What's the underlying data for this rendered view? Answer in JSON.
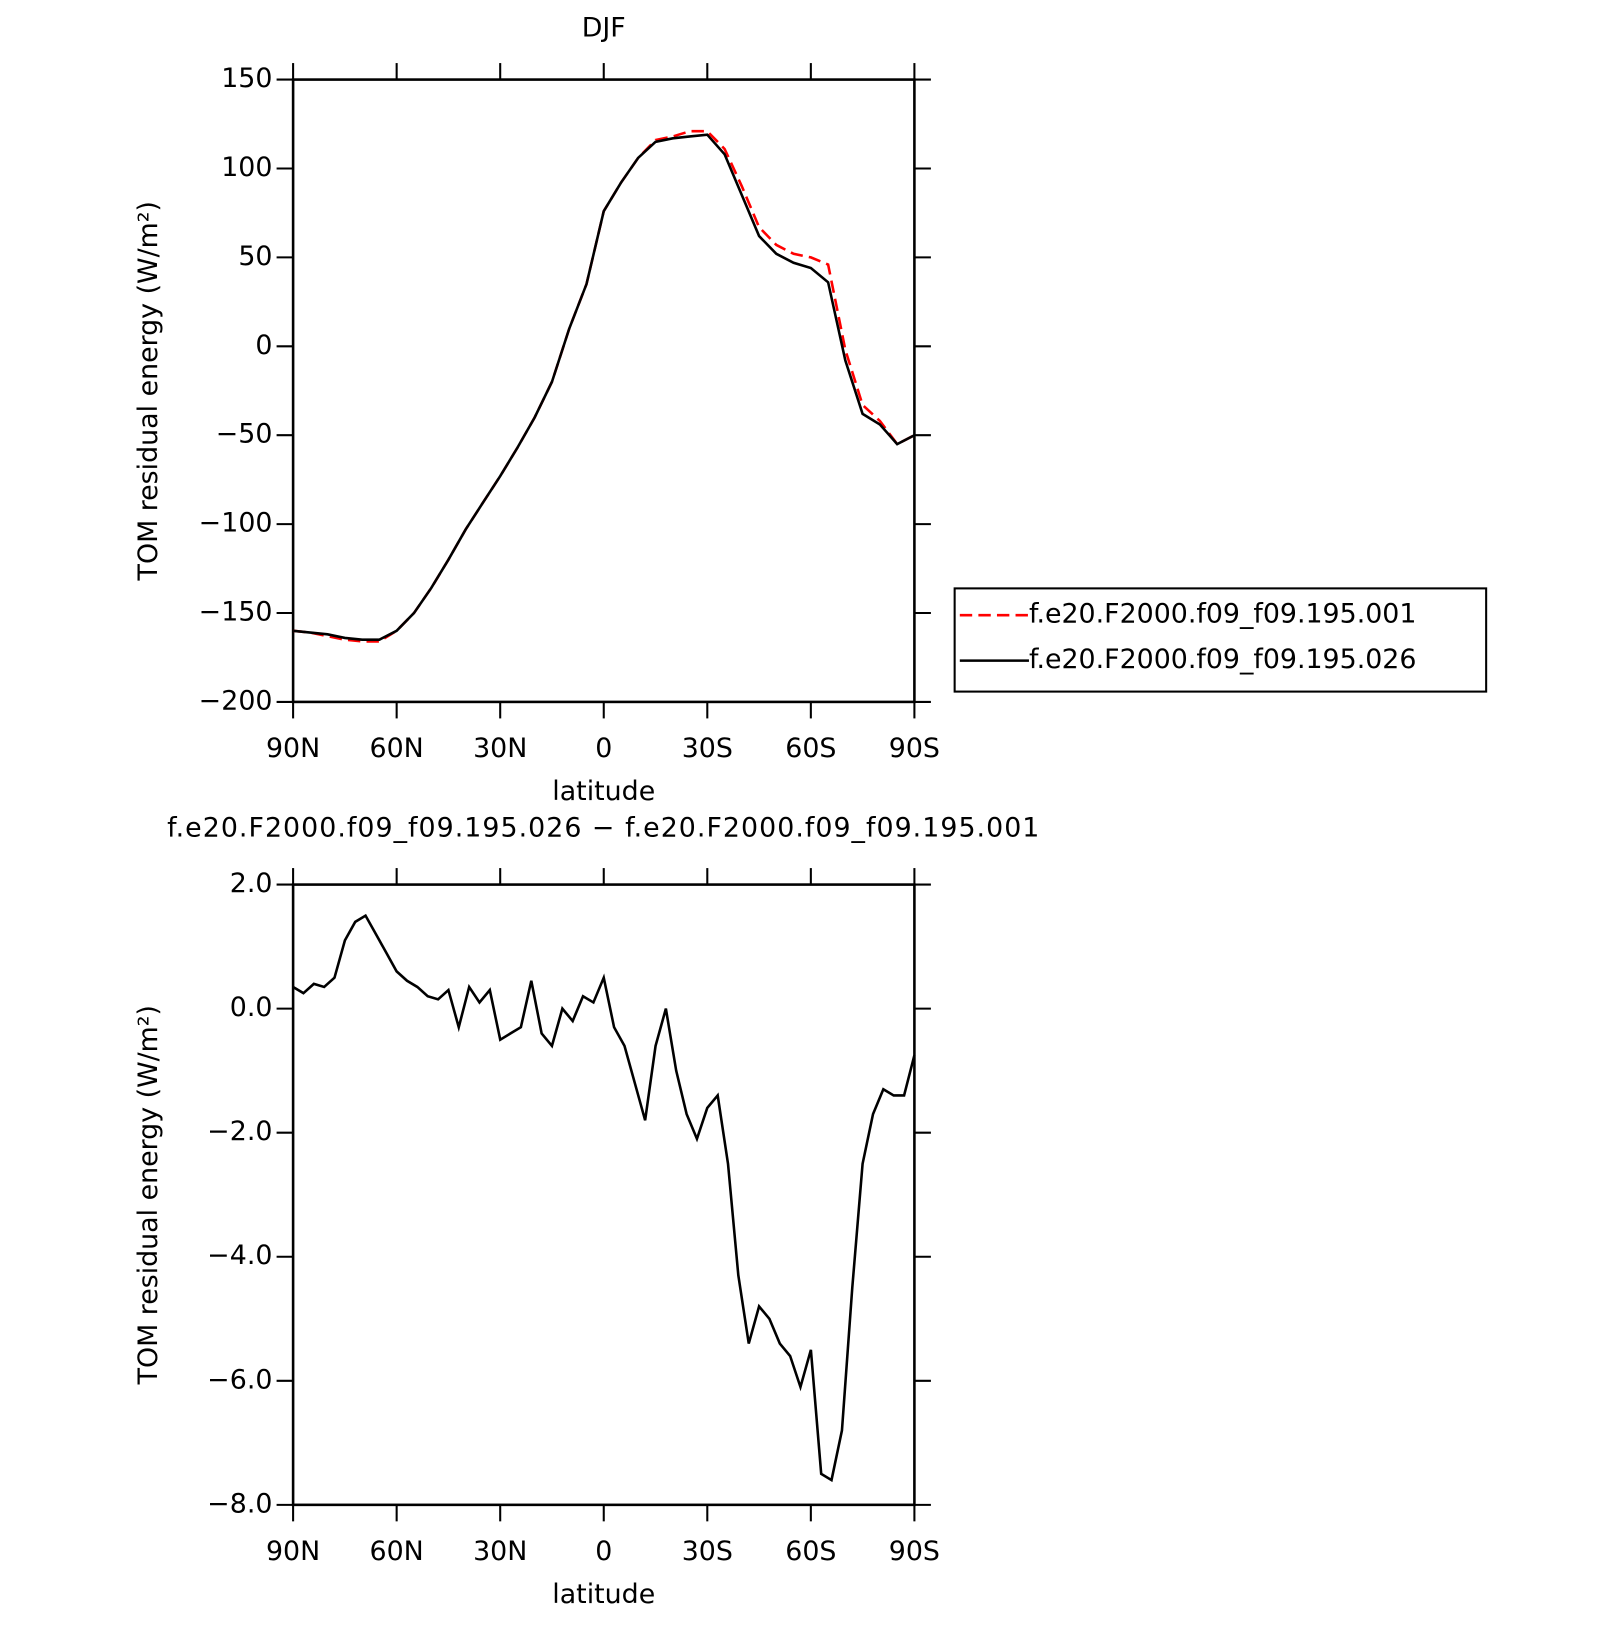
{
  "chart_data": [
    {
      "type": "line",
      "title": "DJF",
      "xlabel": "latitude",
      "ylabel": "TOM residual energy (W/m²)",
      "x": [
        90,
        85,
        80,
        75,
        70,
        65,
        60,
        55,
        50,
        45,
        40,
        35,
        30,
        25,
        20,
        15,
        10,
        5,
        0,
        -5,
        -10,
        -15,
        -20,
        -25,
        -30,
        -35,
        -40,
        -45,
        -50,
        -55,
        -60,
        -65,
        -70,
        -75,
        -80,
        -85,
        -90
      ],
      "series": [
        {
          "name": "f.e20.F2000.f09_f09.195.001",
          "color": "#ff0000",
          "linestyle": "dashed",
          "values": [
            -160,
            -161,
            -163,
            -165,
            -166,
            -166,
            -160,
            -150,
            -136,
            -120,
            -103,
            -88,
            -73,
            -57,
            -40,
            -20,
            10,
            35,
            76,
            92,
            106,
            116,
            118,
            121,
            121,
            111,
            90,
            67,
            57,
            52,
            50,
            46,
            -2,
            -33,
            -42,
            -55,
            -50
          ]
        },
        {
          "name": "f.e20.F2000.f09_f09.195.026",
          "color": "#000000",
          "linestyle": "solid",
          "values": [
            -160,
            -161,
            -162,
            -164,
            -165,
            -165,
            -160,
            -150,
            -136,
            -120,
            -103,
            -88,
            -73,
            -57,
            -40,
            -20,
            10,
            35,
            76,
            92,
            106,
            115,
            117,
            118,
            119,
            108,
            85,
            62,
            52,
            47,
            44,
            36,
            -8,
            -38,
            -44,
            -55,
            -50
          ]
        }
      ],
      "xlim": [
        90,
        -90
      ],
      "xticks": [
        {
          "value": 90,
          "label": "90N"
        },
        {
          "value": 60,
          "label": "60N"
        },
        {
          "value": 30,
          "label": "30N"
        },
        0,
        {
          "value": -30,
          "label": "30S"
        },
        {
          "value": -60,
          "label": "60S"
        },
        {
          "value": -90,
          "label": "90S"
        }
      ],
      "ylim": [
        -200,
        150
      ],
      "yticks": [
        {
          "value": -200,
          "label": "−200"
        },
        {
          "value": -150,
          "label": "−150"
        },
        {
          "value": -100,
          "label": "−100"
        },
        {
          "value": -50,
          "label": "−50"
        },
        0,
        50,
        100,
        150
      ],
      "legend": "right"
    },
    {
      "type": "line",
      "title": "f.e20.F2000.f09_f09.195.026 − f.e20.F2000.f09_f09.195.001",
      "xlabel": "latitude",
      "ylabel": "TOM residual energy (W/m²)",
      "x": [
        90,
        87,
        84,
        81,
        78,
        75,
        72,
        69,
        66,
        63,
        60,
        57,
        54,
        51,
        48,
        45,
        42,
        39,
        36,
        33,
        30,
        27,
        24,
        21,
        18,
        15,
        12,
        9,
        6,
        3,
        0,
        -3,
        -6,
        -9,
        -12,
        -15,
        -18,
        -21,
        -24,
        -27,
        -30,
        -33,
        -36,
        -39,
        -42,
        -45,
        -48,
        -51,
        -54,
        -57,
        -60,
        -63,
        -66,
        -69,
        -72,
        -75,
        -78,
        -81,
        -84,
        -87,
        -90
      ],
      "series": [
        {
          "name": "f.e20.F2000.f09_f09.195.026 − f.e20.F2000.f09_f09.195.001",
          "color": "#000000",
          "linestyle": "solid",
          "values": [
            0.35,
            0.25,
            0.4,
            0.35,
            0.5,
            1.1,
            1.4,
            1.5,
            1.2,
            0.9,
            0.6,
            0.45,
            0.35,
            0.2,
            0.15,
            0.3,
            -0.3,
            0.35,
            0.1,
            0.3,
            -0.5,
            -0.4,
            -0.3,
            0.45,
            -0.4,
            -0.6,
            0.0,
            -0.2,
            0.2,
            0.1,
            0.5,
            -0.3,
            -0.6,
            -1.2,
            -1.8,
            -0.6,
            0.0,
            -1.0,
            -1.7,
            -2.1,
            -1.6,
            -1.4,
            -2.5,
            -4.3,
            -5.4,
            -4.8,
            -5.0,
            -5.4,
            -5.6,
            -6.1,
            -5.5,
            -7.5,
            -7.6,
            -6.8,
            -4.5,
            -2.5,
            -1.7,
            -1.3,
            -1.4,
            -1.4,
            -0.75
          ]
        }
      ],
      "xlim": [
        90,
        -90
      ],
      "xticks": [
        {
          "value": 90,
          "label": "90N"
        },
        {
          "value": 60,
          "label": "60N"
        },
        {
          "value": 30,
          "label": "30N"
        },
        0,
        {
          "value": -30,
          "label": "30S"
        },
        {
          "value": -60,
          "label": "60S"
        },
        {
          "value": -90,
          "label": "90S"
        }
      ],
      "ylim": [
        -8,
        2
      ],
      "yticks": [
        {
          "value": -8,
          "label": "−8.0"
        },
        {
          "value": -6,
          "label": "−6.0"
        },
        {
          "value": -4,
          "label": "−4.0"
        },
        {
          "value": -2,
          "label": "−2.0"
        },
        {
          "value": 0,
          "label": "0.0"
        },
        {
          "value": 2,
          "label": "2.0"
        }
      ]
    }
  ]
}
